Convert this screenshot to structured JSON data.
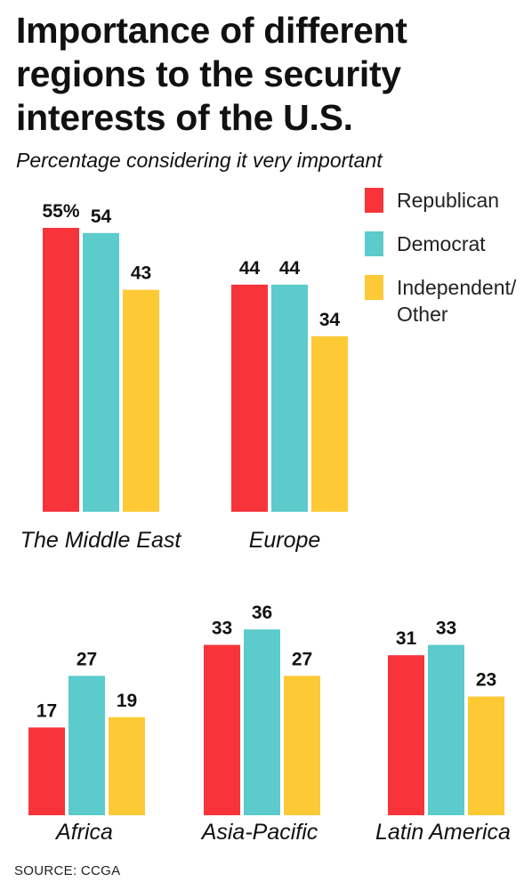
{
  "title_lines": [
    "Importance of different",
    "regions to the security",
    "interests of the U.S."
  ],
  "subtitle": "Percentage considering it very important",
  "source": "SOURCE: CCGA",
  "colors": {
    "Republican": "#f7343a",
    "Democrat": "#5ccbcb",
    "Independent/Other": "#fdc935"
  },
  "legend": [
    {
      "label_lines": [
        "Republican"
      ],
      "color": "#f7343a"
    },
    {
      "label_lines": [
        "Democrat"
      ],
      "color": "#5ccbcb"
    },
    {
      "label_lines": [
        "Independent/",
        "Other"
      ],
      "color": "#fdc935"
    }
  ],
  "chart_data": {
    "type": "bar",
    "series": [
      {
        "name": "Republican",
        "values": [
          55,
          44,
          17,
          33,
          31
        ]
      },
      {
        "name": "Democrat",
        "values": [
          54,
          44,
          27,
          36,
          33
        ]
      },
      {
        "name": "Independent/Other",
        "values": [
          43,
          34,
          19,
          27,
          23
        ]
      }
    ],
    "categories": [
      "The Middle East",
      "Europe",
      "Africa",
      "Asia-Pacific",
      "Latin America"
    ],
    "value_labels": [
      [
        "55%",
        "54",
        "43"
      ],
      [
        "44",
        "44",
        "34"
      ],
      [
        "17",
        "27",
        "19"
      ],
      [
        "33",
        "36",
        "27"
      ],
      [
        "31",
        "33",
        "23"
      ]
    ],
    "legend_position": "top-right",
    "grid": false
  }
}
